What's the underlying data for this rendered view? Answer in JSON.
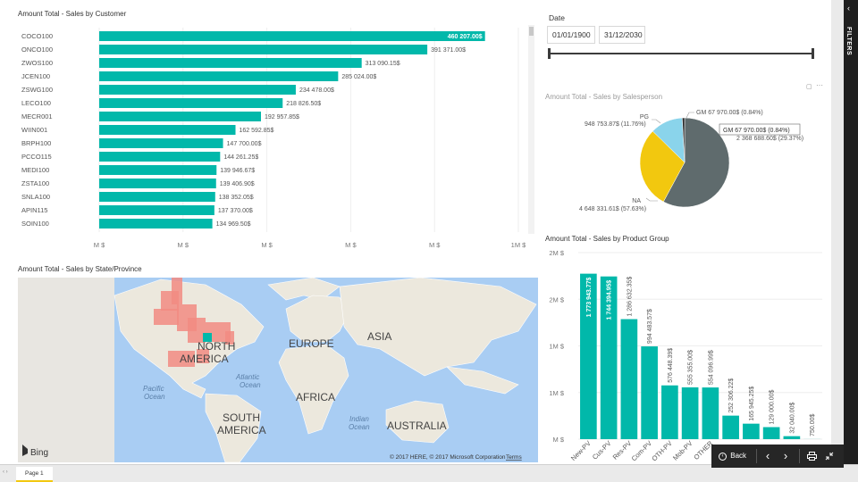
{
  "filters_label": "FILTERS",
  "page_tab": "Page 1",
  "toolbar": {
    "back_label": "Back"
  },
  "date_slicer": {
    "title": "Date",
    "start": "01/01/1900",
    "end": "31/12/2030"
  },
  "map": {
    "title": "Amount Total - Sales by State/Province",
    "labels": {
      "north_america_1": "NORTH",
      "north_america_2": "AMERICA",
      "europe": "EUROPE",
      "asia": "ASIA",
      "africa": "AFRICA",
      "south_america_1": "SOUTH",
      "south_america_2": "AMERICA",
      "australia": "AUSTRALIA",
      "pacific_1": "Pacific",
      "pacific_2": "Ocean",
      "atlantic_1": "Atlantic",
      "atlantic_2": "Ocean",
      "indian_1": "Indian",
      "indian_2": "Ocean"
    },
    "brand": "Bing",
    "copyright": "© 2017 HERE, © 2017 Microsoft Corporation",
    "terms": "Terms"
  },
  "colors": {
    "teal": "#01b8aa",
    "pie_na": "#5f6b6d",
    "pie_gm": "#f2c80f",
    "pie_pg": "#8ad4eb",
    "map_region": "#f28b82"
  },
  "chart_data": [
    {
      "id": "customer",
      "type": "bar",
      "orientation": "horizontal",
      "title": "Amount Total - Sales by Customer",
      "categories": [
        "COCO100",
        "ONCO100",
        "ZWOS100",
        "JCEN100",
        "ZSWG100",
        "LECO100",
        "MECR001",
        "WIIN001",
        "BRPH100",
        "PCCO115",
        "MEDI100",
        "ZSTA100",
        "SNLA100",
        "APIN115",
        "SOIN100"
      ],
      "values": [
        460207,
        391371,
        313090.15,
        285024,
        234478,
        218826.5,
        192957.85,
        162592.85,
        147700,
        144261.25,
        139946.67,
        139406.9,
        138352.05,
        137370,
        134969.5
      ],
      "data_labels": [
        "460 207.00$",
        "391 371.00$",
        "313 090.15$",
        "285 024.00$",
        "234 478.00$",
        "218 826.50$",
        "192 957.85$",
        "162 592.85$",
        "147 700.00$",
        "144 261.25$",
        "139 946.67$",
        "139 406.90$",
        "138 352.05$",
        "137 370.00$",
        "134 969.50$"
      ],
      "x_ticks": [
        "M $",
        "M $",
        "M $",
        "M $",
        "M $",
        "1M $"
      ],
      "xlim": [
        0,
        500000
      ],
      "grid": true
    },
    {
      "id": "salesperson",
      "type": "pie",
      "title": "Amount Total - Sales by Salesperson",
      "slices": [
        {
          "name": "NA",
          "value": 4648331.61,
          "percent": 57.63,
          "label": "NA",
          "value_label": "4 648 331.61$ (57.63%)"
        },
        {
          "name": "GM",
          "value": 2368688.6,
          "percent": 29.37,
          "label": "",
          "value_label": "2 368 688.60$ (29.37%)"
        },
        {
          "name": "PG",
          "value": 948753.87,
          "percent": 11.76,
          "label": "PG",
          "value_label": "948 753.87$ (11.76%)"
        },
        {
          "name": "GM",
          "value": 67970,
          "percent": 0.84,
          "label": "GM",
          "value_label": "GM 67 970.00$ (0.84%)"
        }
      ],
      "tooltip": "GM   67 970.00$ (0.84%)"
    },
    {
      "id": "product_group",
      "type": "bar",
      "orientation": "vertical",
      "title": "Amount Total - Sales by Product Group",
      "categories": [
        "New-PV",
        "Cus-PV",
        "Res-PV",
        "Com-PV",
        "OTH-PV",
        "Mob-PV",
        "OTHER",
        "",
        "",
        "",
        "",
        ""
      ],
      "values": [
        1773943.77,
        1744394.95,
        1286632.35,
        994483.57,
        576448.39,
        555355,
        554096.99,
        252306.22,
        165945.25,
        129000,
        32040,
        750
      ],
      "data_labels": [
        "1 773 943.77$",
        "1 744 394.95$",
        "1 286 632.35$",
        "994 483.57$",
        "576 448.39$",
        "555 355.00$",
        "554 096.99$",
        "252 306.22$",
        "165 945.25$",
        "129 000.00$",
        "32 040.00$",
        "750.00$"
      ],
      "y_ticks": [
        "2M $",
        "2M $",
        "1M $",
        "1M $",
        "M $"
      ],
      "ylim": [
        0,
        2000000
      ],
      "grid": true
    }
  ]
}
